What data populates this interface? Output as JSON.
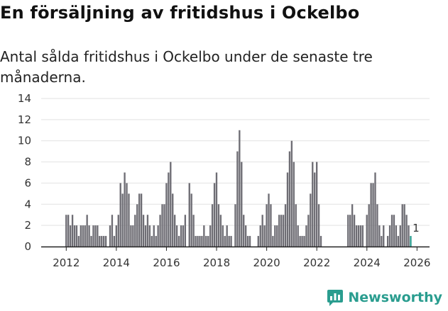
{
  "title": "En försäljning av fritidshus i Ockelbo",
  "subtitle": "Antal sålda fritidshus i Ockelbo under de senaste tre månaderna.",
  "brand": "Newsworthy",
  "colors": {
    "bar": "#6e6d74",
    "highlight": "#2a9d8f",
    "grid": "#e2e2e2",
    "axis": "#222222"
  },
  "chart_data": {
    "type": "bar",
    "title": "En försäljning av fritidshus i Ockelbo",
    "subtitle": "Antal sålda fritidshus i Ockelbo under de senaste tre månaderna.",
    "xlabel": "",
    "ylabel": "",
    "ylim": [
      0,
      14
    ],
    "yticks": [
      0,
      2,
      4,
      6,
      8,
      10,
      12,
      14
    ],
    "xlim": [
      2011.0,
      2026.5
    ],
    "xticks": [
      2012,
      2014,
      2016,
      2018,
      2020,
      2022,
      2024,
      2026
    ],
    "grid": true,
    "annotation": {
      "text": "1",
      "x": 2025.96
    },
    "series": [
      {
        "name": "Antal sålda fritidshus (rullande tre månader)",
        "start": 2012.0,
        "step": 0.0833333,
        "values": [
          3,
          3,
          2,
          3,
          2,
          2,
          1,
          2,
          2,
          2,
          3,
          2,
          1,
          2,
          2,
          2,
          1,
          1,
          1,
          1,
          0,
          2,
          3,
          1,
          2,
          3,
          6,
          5,
          7,
          6,
          5,
          2,
          2,
          3,
          4,
          5,
          5,
          3,
          2,
          3,
          2,
          1,
          2,
          1,
          2,
          3,
          4,
          4,
          6,
          7,
          8,
          5,
          3,
          2,
          1,
          2,
          2,
          3,
          0,
          6,
          5,
          3,
          1,
          1,
          1,
          1,
          2,
          1,
          1,
          2,
          4,
          6,
          7,
          4,
          3,
          2,
          1,
          2,
          1,
          1,
          0,
          4,
          9,
          11,
          8,
          3,
          2,
          1,
          1,
          0,
          0,
          0,
          1,
          2,
          3,
          2,
          4,
          5,
          4,
          1,
          2,
          2,
          3,
          3,
          3,
          4,
          7,
          9,
          10,
          8,
          4,
          2,
          1,
          1,
          1,
          2,
          3,
          5,
          8,
          7,
          8,
          4,
          1,
          0,
          0,
          0,
          0,
          0,
          0,
          0,
          0,
          0,
          0,
          0,
          0,
          3,
          3,
          4,
          3,
          2,
          2,
          2,
          2,
          0,
          3,
          4,
          6,
          6,
          7,
          4,
          2,
          1,
          2,
          0,
          1,
          2,
          3,
          3,
          2,
          1,
          2,
          4,
          4,
          3,
          2,
          1
        ],
        "highlight_last": 1
      }
    ]
  }
}
